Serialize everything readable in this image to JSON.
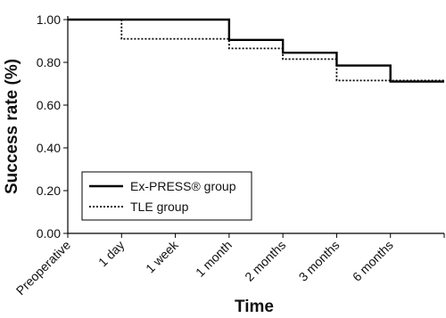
{
  "chart_data": {
    "type": "step",
    "x_label": "Time",
    "y_label": "Success rate (%)",
    "categories": [
      "Preoperative",
      "1 day",
      "1 week",
      "1 month",
      "2 months",
      "3 months",
      "6 months",
      null
    ],
    "series": [
      {
        "name": "Ex-PRESS® group",
        "color": "#000000",
        "dash": "solid",
        "values": [
          1.0,
          1.0,
          1.0,
          0.905,
          0.845,
          0.785,
          0.71,
          0.71
        ]
      },
      {
        "name": "TLE group",
        "color": "#000000",
        "dash": "dotted",
        "values": [
          1.0,
          0.91,
          0.91,
          0.865,
          0.815,
          0.715,
          0.715,
          0.715
        ]
      }
    ],
    "ylim": [
      0,
      1.0
    ],
    "yticks": [
      {
        "value": 0,
        "label": "0.00"
      },
      {
        "value": 0.2,
        "label": "0.20"
      },
      {
        "value": 0.4,
        "label": "0.40"
      },
      {
        "value": 0.6,
        "label": "0.60"
      },
      {
        "value": 0.8,
        "label": "0.80"
      },
      {
        "value": 1.0,
        "label": "1.00"
      }
    ],
    "legend": "lower-left",
    "grid": false
  }
}
